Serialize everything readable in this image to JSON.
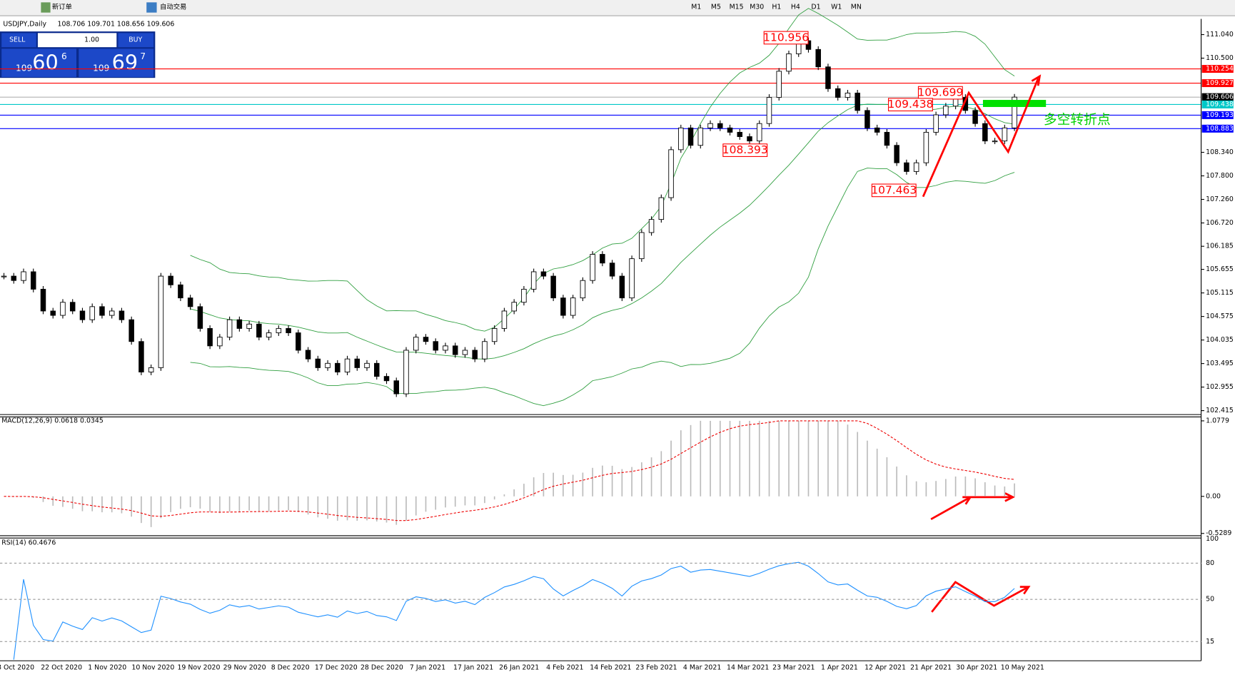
{
  "toolbar": {
    "new_order": "新订单",
    "auto_trading": "自动交易",
    "timeframes": [
      "M1",
      "M5",
      "M15",
      "M30",
      "H1",
      "H4",
      "D1",
      "W1",
      "MN"
    ]
  },
  "trade_panel": {
    "sell": "SELL",
    "buy": "BUY",
    "lot": "1.00",
    "bid": {
      "big": "109",
      "main": "60",
      "pip": "6"
    },
    "ask": {
      "big": "109",
      "main": "69",
      "pip": "7"
    }
  },
  "chart_data": {
    "type": "candlestick",
    "title": "USDJPY,Daily",
    "ohlc_header": "108.706 109.701 108.656 109.606",
    "close": [
      105.5,
      105.4,
      105.6,
      105.2,
      104.7,
      104.6,
      104.9,
      104.7,
      104.5,
      104.8,
      104.6,
      104.7,
      104.5,
      104.0,
      103.3,
      103.4,
      105.5,
      105.3,
      105.0,
      104.8,
      104.3,
      103.9,
      104.1,
      104.5,
      104.3,
      104.4,
      104.1,
      104.2,
      104.3,
      104.2,
      103.8,
      103.6,
      103.4,
      103.5,
      103.3,
      103.6,
      103.4,
      103.5,
      103.2,
      103.1,
      102.8,
      103.8,
      104.1,
      104.0,
      103.8,
      103.9,
      103.7,
      103.8,
      103.6,
      104.0,
      104.3,
      104.7,
      104.9,
      105.2,
      105.6,
      105.5,
      105.0,
      104.6,
      105.0,
      105.4,
      106.0,
      105.8,
      105.5,
      105.0,
      105.9,
      106.5,
      106.8,
      107.3,
      108.4,
      108.9,
      108.5,
      108.9,
      109.0,
      108.9,
      108.8,
      108.7,
      108.6,
      109.0,
      109.6,
      110.2,
      110.6,
      110.9,
      110.7,
      110.3,
      109.8,
      109.6,
      109.7,
      109.3,
      108.9,
      108.8,
      108.5,
      108.1,
      107.9,
      108.1,
      108.8,
      109.2,
      109.4,
      109.6,
      109.3,
      109.0,
      108.6,
      108.6,
      108.9,
      109.606
    ],
    "ylim": [
      102.415,
      111.04
    ],
    "yticks": [
      {
        "value": 111.04,
        "label": "111.040"
      },
      {
        "value": 110.5,
        "label": "110.500"
      },
      {
        "value": 108.34,
        "label": "108.340"
      },
      {
        "value": 107.8,
        "label": "107.800"
      },
      {
        "value": 107.26,
        "label": "107.260"
      },
      {
        "value": 106.72,
        "label": "106.720"
      },
      106.185,
      105.655,
      105.115,
      104.575,
      104.035,
      103.495,
      102.955,
      102.415
    ],
    "levels": [
      {
        "value": 110.254,
        "color": "#ff0000"
      },
      {
        "value": 109.927,
        "color": "#ff0000"
      },
      {
        "value": 109.606,
        "color": "#000000"
      },
      {
        "value": 109.438,
        "color": "#00c8c8"
      },
      {
        "value": 109.193,
        "color": "#0000ff"
      },
      {
        "value": 108.883,
        "color": "#0000ff"
      }
    ],
    "annotations": [
      110.956,
      109.699,
      109.438,
      108.393,
      107.463
    ],
    "note": "多空转折点",
    "x_labels": [
      "3 Oct 2020",
      "22 Oct 2020",
      "1 Nov 2020",
      "10 Nov 2020",
      "19 Nov 2020",
      "29 Nov 2020",
      "8 Dec 2020",
      "17 Dec 2020",
      "28 Dec 2020",
      "7 Jan 2021",
      "17 Jan 2021",
      "26 Jan 2021",
      "4 Feb 2021",
      "14 Feb 2021",
      "23 Feb 2021",
      "4 Mar 2021",
      "14 Mar 2021",
      "23 Mar 2021",
      "1 Apr 2021",
      "12 Apr 2021",
      "21 Apr 2021",
      "30 Apr 2021",
      "10 May 2021"
    ],
    "macd": {
      "title": "MACD(12,26,9) 0.0618 0.0345",
      "ylim": [
        -0.5289,
        1.0779
      ],
      "yticks": [
        1.0779,
        {
          "value": 0,
          "label": "0.00"
        },
        -0.5289
      ]
    },
    "rsi": {
      "title": "RSI(14) 60.4676",
      "ylim": [
        0,
        100
      ],
      "yticks": [
        100,
        80,
        50,
        15
      ]
    }
  }
}
